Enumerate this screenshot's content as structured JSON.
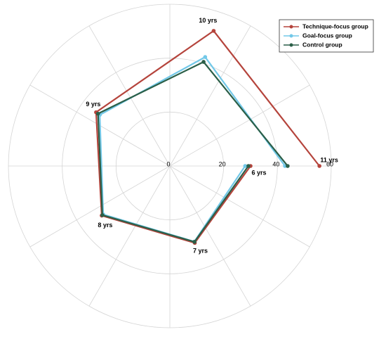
{
  "chart_data": {
    "type": "radar",
    "categories": [
      "6 yrs",
      "7 yrs",
      "8 yrs",
      "9 yrs",
      "10 yrs",
      "11 yrs"
    ],
    "series": [
      {
        "name": "Technique-focus group",
        "color": "#b5443c",
        "values": [
          30,
          30,
          31.3,
          33.9,
          52.7,
          55.6
        ]
      },
      {
        "name": "Goal-focus group",
        "color": "#72c8e8",
        "values": [
          28,
          29.5,
          30.6,
          32.2,
          42.5,
          42.8
        ]
      },
      {
        "name": "Control group",
        "color": "#2b5f48",
        "values": [
          29.2,
          29.6,
          31,
          33,
          40.6,
          43.8
        ]
      }
    ],
    "ylim": [
      0,
      60
    ],
    "yticks": [
      0,
      20,
      40,
      60
    ],
    "grid": true,
    "legend": "upper right"
  }
}
